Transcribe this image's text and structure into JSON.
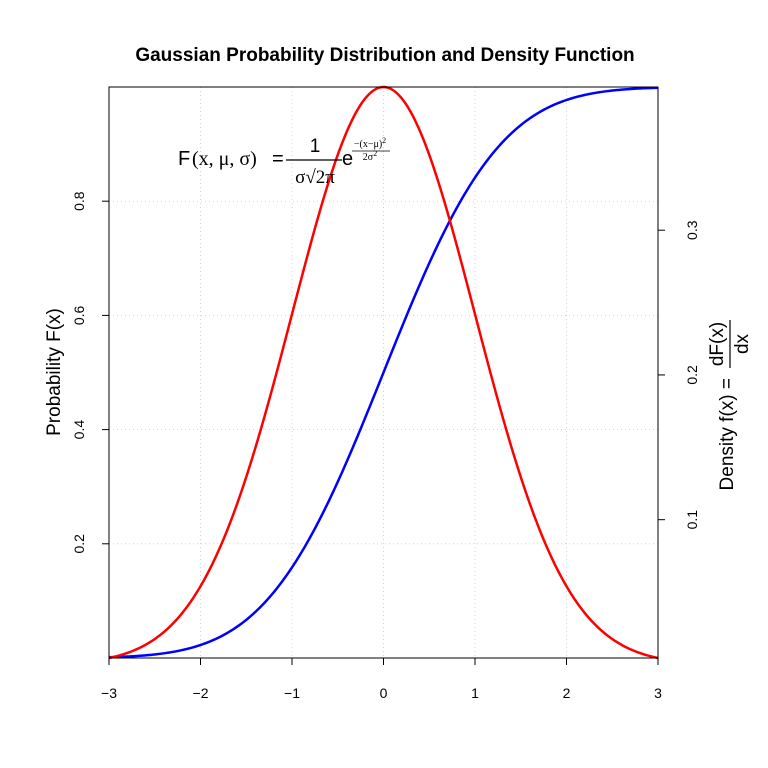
{
  "chart_data": {
    "type": "line",
    "title": "Gaussian Probability Distribution and Density Function",
    "x_ticks": [
      "−3",
      "−2",
      "−1",
      "0",
      "1",
      "2",
      "3"
    ],
    "xlim": [
      -3,
      3
    ],
    "xlabel": "",
    "left_axis": {
      "label": "Probability F(x)",
      "ticks": [
        "0.2",
        "0.4",
        "0.6",
        "0.8"
      ],
      "ylim": [
        0,
        1
      ]
    },
    "right_axis": {
      "label_prefix": "Density f(x) =",
      "label_numerator": "dF(x)",
      "label_denominator": "dx",
      "ticks": [
        "0.1",
        "0.2",
        "0.3"
      ]
    },
    "grid": true,
    "series": [
      {
        "color": "#0000ff",
        "axis": "left",
        "function": "normal_cdf",
        "x": [
          -3,
          -2.5,
          -2,
          -1.5,
          -1,
          -0.5,
          0,
          0.5,
          1,
          1.5,
          2,
          2.5,
          3
        ],
        "y": [
          0.0013,
          0.0062,
          0.0228,
          0.0668,
          0.1587,
          0.3085,
          0.5,
          0.6915,
          0.8413,
          0.9332,
          0.9772,
          0.9938,
          0.9987
        ]
      },
      {
        "color": "#ff0000",
        "axis": "right",
        "function": "normal_pdf",
        "x": [
          -3,
          -2.5,
          -2,
          -1.5,
          -1,
          -0.5,
          0,
          0.5,
          1,
          1.5,
          2,
          2.5,
          3
        ],
        "y": [
          0.0044,
          0.0175,
          0.054,
          0.1295,
          0.242,
          0.3521,
          0.3989,
          0.3521,
          0.242,
          0.1295,
          0.054,
          0.0175,
          0.0044
        ]
      }
    ],
    "annotation": {
      "lhs_func": "F",
      "lhs_args": "(x, μ, σ)",
      "equals": "=",
      "frac_num": "1",
      "frac_den": "σ√2π",
      "base": "e",
      "exp_num": "−(x−μ)",
      "exp_num_power": "2",
      "exp_den": "2σ",
      "exp_den_power": "2"
    }
  }
}
